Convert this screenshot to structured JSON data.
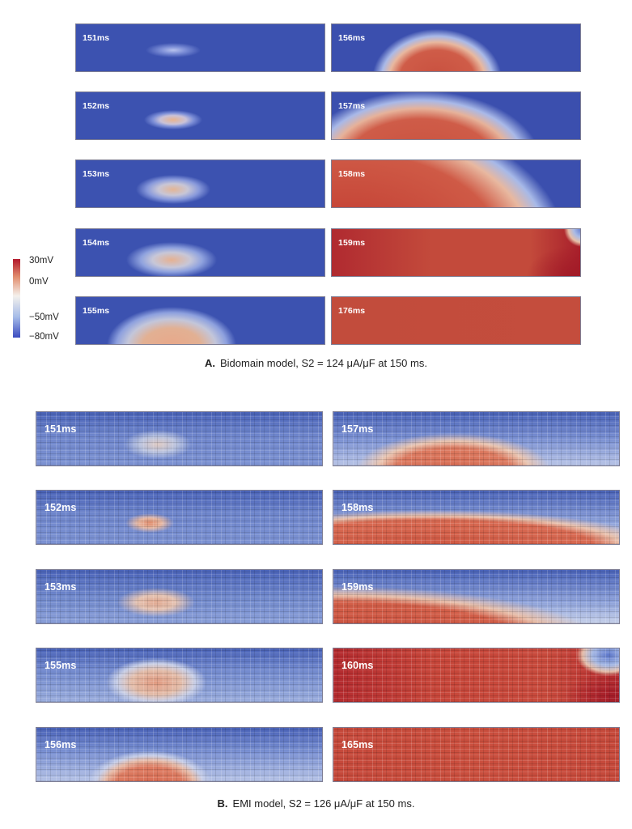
{
  "colorbar": {
    "ticks": [
      "30mV",
      "0mV",
      "−50mV",
      "−80mV"
    ],
    "colors": [
      "#b2182b",
      "#e28f70",
      "#f4f1ec",
      "#a5bbe8",
      "#3b4cc0"
    ]
  },
  "bidomain": {
    "caption_label": "A.",
    "caption_text": "Bidomain model, S2 = 124 μA/μF at 150 ms.",
    "frames": [
      {
        "time": "151ms"
      },
      {
        "time": "156ms"
      },
      {
        "time": "152ms"
      },
      {
        "time": "157ms"
      },
      {
        "time": "153ms"
      },
      {
        "time": "158ms"
      },
      {
        "time": "154ms"
      },
      {
        "time": "159ms"
      },
      {
        "time": "155ms"
      },
      {
        "time": "176ms"
      }
    ]
  },
  "emi": {
    "caption_label": "B.",
    "caption_text": "EMI model, S2 = 126 μA/μF at 150 ms.",
    "frames": [
      {
        "time": "151ms"
      },
      {
        "time": "157ms"
      },
      {
        "time": "152ms"
      },
      {
        "time": "158ms"
      },
      {
        "time": "153ms"
      },
      {
        "time": "159ms"
      },
      {
        "time": "155ms"
      },
      {
        "time": "160ms"
      },
      {
        "time": "156ms"
      },
      {
        "time": "165ms"
      }
    ]
  }
}
